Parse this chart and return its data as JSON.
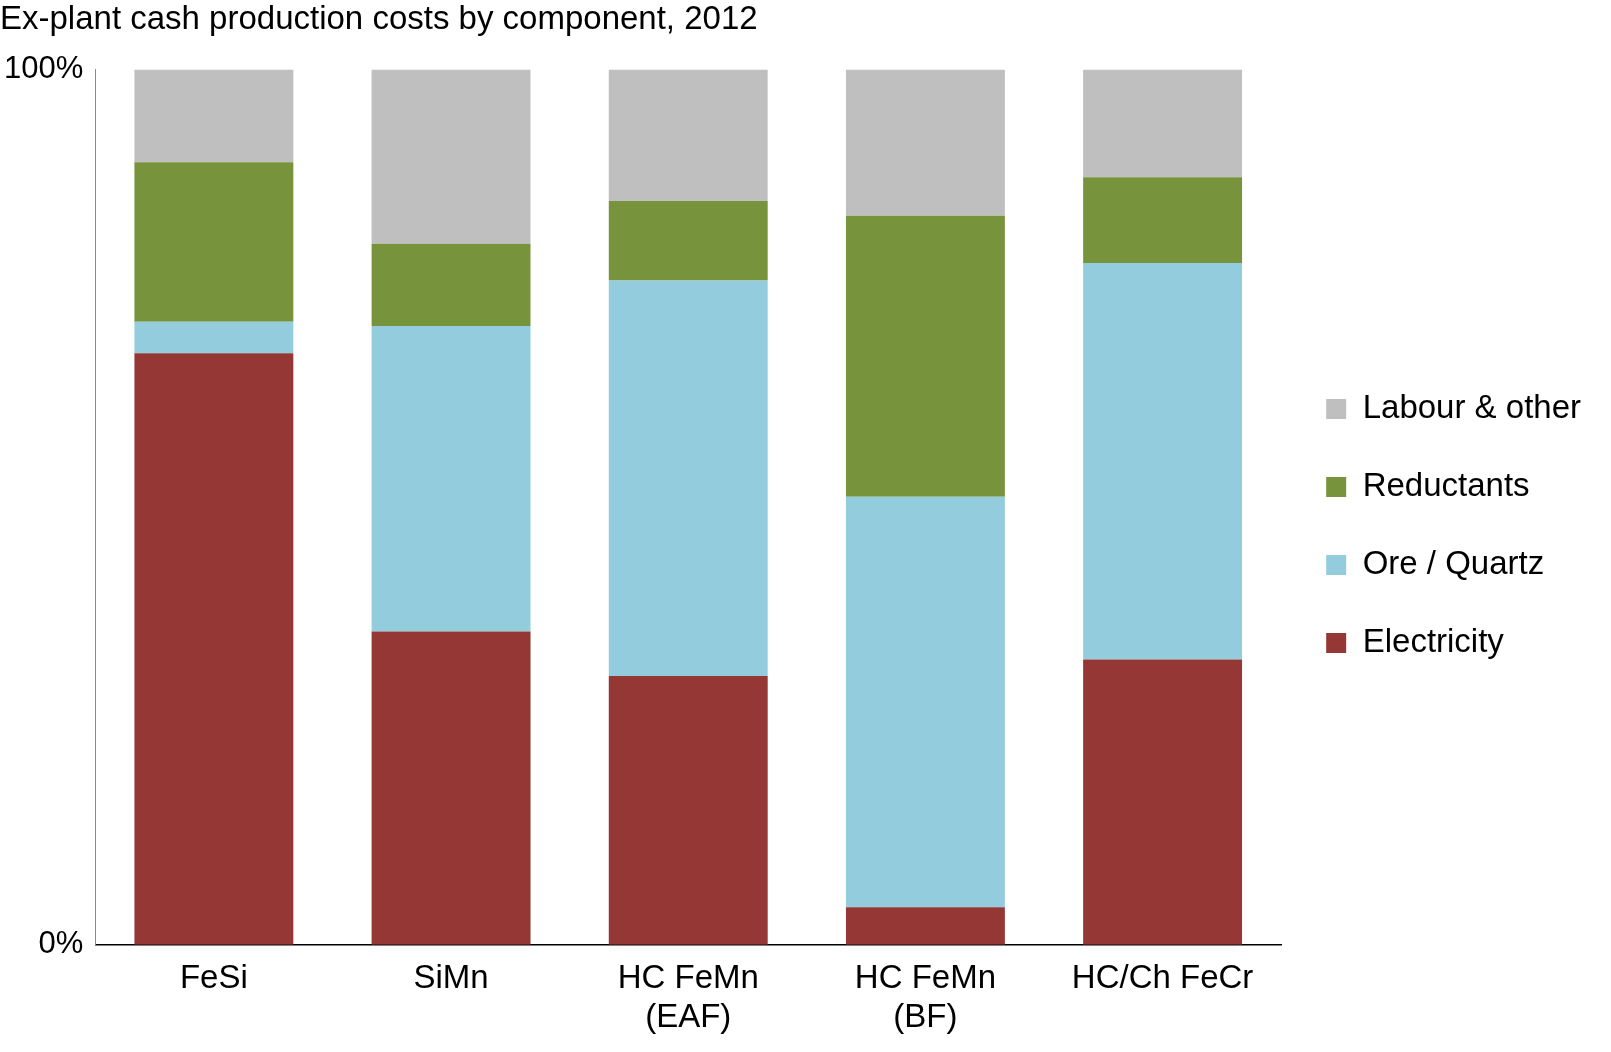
{
  "chart_data": {
    "type": "bar",
    "title": "Ex-plant cash production costs by component, 2012",
    "categories": [
      "FeSi",
      "SiMn",
      "HC FeMn (EAF)",
      "HC FeMn (BF)",
      "HC/Ch FeCr"
    ],
    "stacked": true,
    "series": [
      {
        "name": "Electricity",
        "color": "#953735",
        "values": [
          67.6,
          35.8,
          30.7,
          4.3,
          32.6
        ]
      },
      {
        "name": "Ore / Quartz",
        "color": "#93cddd",
        "values": [
          3.6,
          34.9,
          45.2,
          46.9,
          45.3
        ]
      },
      {
        "name": "Reductants",
        "color": "#77933c",
        "values": [
          18.2,
          9.4,
          9.1,
          32.1,
          9.8
        ]
      },
      {
        "name": "Labour & other",
        "color": "#bfbfbf",
        "values": [
          10.6,
          19.9,
          15.0,
          16.7,
          12.3
        ]
      }
    ],
    "ylim": [
      0,
      100
    ],
    "yticks": [
      {
        "value": 0,
        "label": "0%"
      },
      {
        "value": 100,
        "label": "100%"
      }
    ],
    "grid": false,
    "legend": "right"
  }
}
